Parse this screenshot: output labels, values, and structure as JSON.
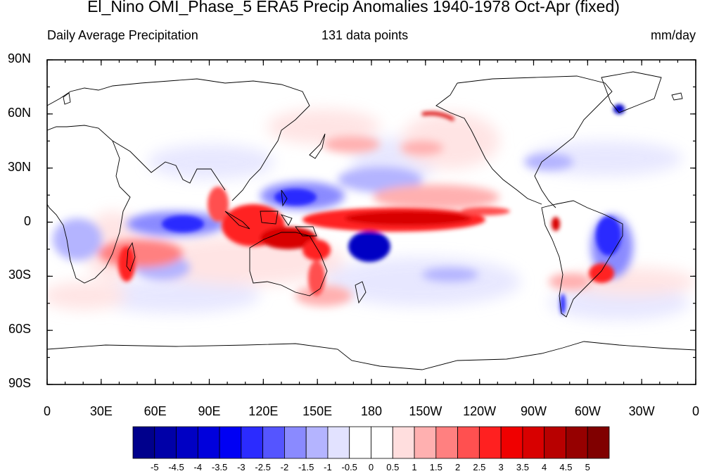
{
  "title": "El_Nino OMI_Phase_5 ERA5 Precip Anomalies 1940-1978 Oct-Apr (fixed)",
  "subtitle_left": "Daily Average Precipitation",
  "subtitle_center": "131 data points",
  "subtitle_right": "mm/day",
  "lat_labels": [
    "90N",
    "60N",
    "30N",
    "0",
    "30S",
    "60S",
    "90S"
  ],
  "lon_labels": [
    "0",
    "30E",
    "60E",
    "90E",
    "120E",
    "150E",
    "180",
    "150W",
    "120W",
    "90W",
    "60W",
    "30W",
    "0"
  ],
  "colorbar": {
    "labels": [
      "-5",
      "-4.5",
      "-4",
      "-3.5",
      "-3",
      "-2.5",
      "-2",
      "-1.5",
      "-1",
      "-0.5",
      "0",
      "0.5",
      "1",
      "1.5",
      "2",
      "2.5",
      "3",
      "3.5",
      "4",
      "4.5",
      "5"
    ],
    "colors": [
      "#00008c",
      "#0000a8",
      "#0000c4",
      "#0000dc",
      "#0000f4",
      "#2b2bff",
      "#5555ff",
      "#8a8aff",
      "#b4b4ff",
      "#e2e2ff",
      "#ffffff",
      "#ffffff",
      "#ffdede",
      "#ffb0b0",
      "#ff8080",
      "#ff5050",
      "#ff2020",
      "#f00000",
      "#d80000",
      "#b80000",
      "#960000",
      "#800000"
    ]
  },
  "map_features": {
    "projection": "cylindrical equidistant",
    "extent": "0-360E, 90S-90N",
    "anomaly_regions": [
      {
        "name": "Central/East Pacific equatorial band",
        "sign": "positive",
        "magnitude": "4-5"
      },
      {
        "name": "Maritime Continent / Indonesia",
        "sign": "positive",
        "magnitude": "3-5"
      },
      {
        "name": "Northern Australia",
        "sign": "positive",
        "magnitude": "3-4"
      },
      {
        "name": "Southeast South America",
        "sign": "positive",
        "magnitude": "2-3"
      },
      {
        "name": "Equatorial Indian Ocean",
        "sign": "negative",
        "magnitude": "-2 to -3"
      },
      {
        "name": "Philippine Sea / NW Pacific",
        "sign": "negative",
        "magnitude": "-2 to -3"
      },
      {
        "name": "South Pacific Convergence Zone",
        "sign": "negative",
        "magnitude": "-3 to -5"
      },
      {
        "name": "Northeast Brazil",
        "sign": "negative",
        "magnitude": "-2 to -4"
      },
      {
        "name": "Gulf of Alaska coast",
        "sign": "positive",
        "magnitude": "3-4"
      },
      {
        "name": "Southern Greenland",
        "sign": "negative",
        "magnitude": "-3 to -4"
      }
    ]
  }
}
